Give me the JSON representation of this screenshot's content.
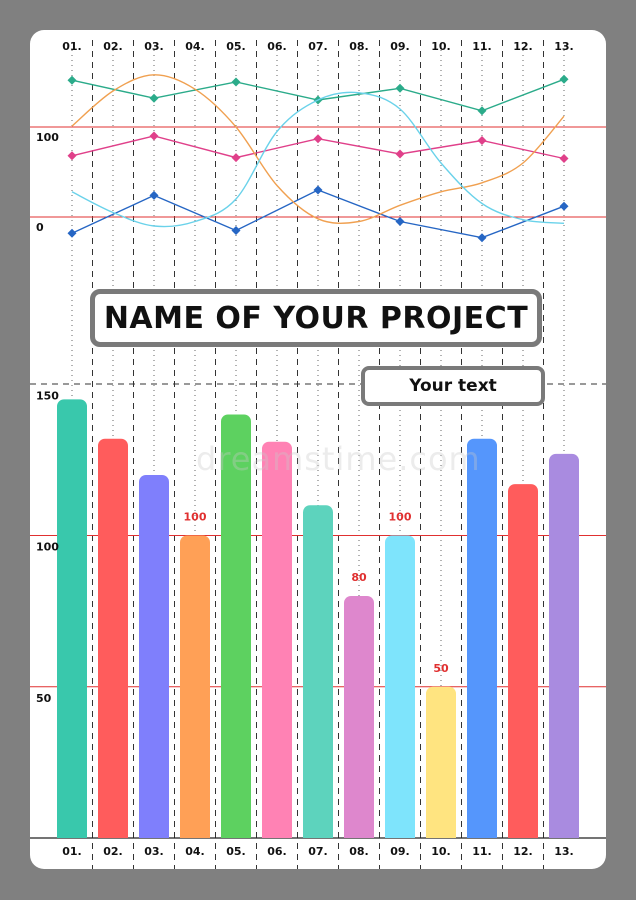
{
  "chart_data": [
    {
      "type": "line",
      "x": [
        "01.",
        "02.",
        "03.",
        "04.",
        "05.",
        "06.",
        "07.",
        "08.",
        "09.",
        "10.",
        "11.",
        "12.",
        "13."
      ],
      "y_ticks": [
        100,
        0
      ],
      "series": [
        {
          "color": "#2bab8a",
          "marker": "diamond",
          "points": [
            [
              1,
              152
            ],
            [
              3,
              132
            ],
            [
              5,
              150
            ],
            [
              7,
              130
            ],
            [
              9,
              143
            ],
            [
              11,
              118
            ],
            [
              13,
              153
            ]
          ]
        },
        {
          "color": "#e0408a",
          "marker": "diamond",
          "points": [
            [
              1,
              68
            ],
            [
              3,
              90
            ],
            [
              5,
              66
            ],
            [
              7,
              87
            ],
            [
              9,
              70
            ],
            [
              11,
              85
            ],
            [
              13,
              65
            ]
          ]
        },
        {
          "color": "#2666c4",
          "marker": "diamond",
          "points": [
            [
              1,
              -18
            ],
            [
              3,
              24
            ],
            [
              5,
              -15
            ],
            [
              7,
              30
            ],
            [
              9,
              -5
            ],
            [
              11,
              -23
            ],
            [
              13,
              12
            ]
          ]
        },
        {
          "color": "#f0a050",
          "smooth": true,
          "points": [
            [
              1,
              101
            ],
            [
              2,
              140
            ],
            [
              3,
              158
            ],
            [
              4,
              142
            ],
            [
              5,
              100
            ],
            [
              6,
              35
            ],
            [
              7,
              -2
            ],
            [
              8,
              -5
            ],
            [
              9,
              13
            ],
            [
              10,
              28
            ],
            [
              11,
              38
            ],
            [
              12,
              60
            ],
            [
              13,
              112
            ]
          ]
        },
        {
          "color": "#6ad2ea",
          "smooth": true,
          "points": [
            [
              1,
              28
            ],
            [
              2,
              5
            ],
            [
              3,
              -10
            ],
            [
              4,
              -5
            ],
            [
              5,
              20
            ],
            [
              6,
              95
            ],
            [
              7,
              130
            ],
            [
              8,
              138
            ],
            [
              9,
              120
            ],
            [
              10,
              60
            ],
            [
              11,
              15
            ],
            [
              12,
              -3
            ],
            [
              13,
              -7
            ]
          ]
        }
      ]
    },
    {
      "type": "bar",
      "categories": [
        "01.",
        "02.",
        "03.",
        "04.",
        "05.",
        "06.",
        "07.",
        "08.",
        "09.",
        "10.",
        "11.",
        "12.",
        "13."
      ],
      "values": [
        145,
        132,
        120,
        100,
        140,
        131,
        110,
        80,
        100,
        50,
        132,
        117,
        127
      ],
      "colors": [
        "#39c8ac",
        "#ff5c5c",
        "#7f7ffc",
        "#ffa056",
        "#5dd160",
        "#ff82b4",
        "#5dd3bd",
        "#de87cd",
        "#7ee4fc",
        "#ffe480",
        "#5596fc",
        "#ff5c5c",
        "#a98be0"
      ],
      "data_labels": [
        null,
        null,
        null,
        "100",
        null,
        null,
        null,
        "80",
        "100",
        "50",
        null,
        null,
        null
      ],
      "y_ticks": [
        150,
        100,
        50
      ],
      "ylim": [
        0,
        150
      ]
    }
  ],
  "title": "NAME OF YOUR PROJECT",
  "subtitle": "Your text",
  "watermark": "dreamstime.com",
  "colors": {
    "ref_line": "#e03030",
    "data_label": "#e03030",
    "frame": "#808080",
    "box_border": "#7a7a7a"
  }
}
